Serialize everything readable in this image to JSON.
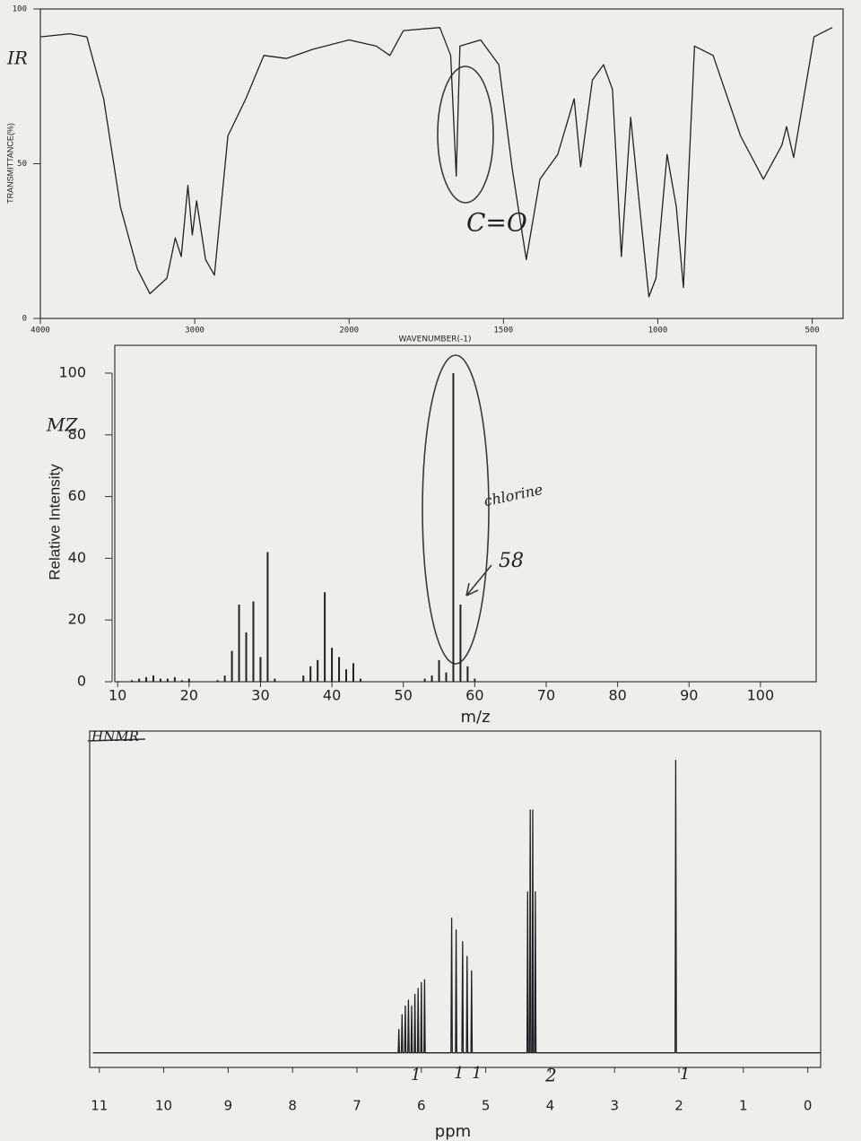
{
  "chart_data": [
    {
      "type": "line",
      "x_scale": "tick-spaced",
      "x_label": "WAVENUMBER(-1)",
      "y_label": "TRANSMITTANCE(%)",
      "annotations": [
        "IR",
        "C=O"
      ],
      "color": "#222222",
      "xlim": [
        4000,
        400
      ],
      "xticks": [
        4000,
        3000,
        2000,
        1500,
        1000,
        500
      ],
      "ylim": [
        0,
        100
      ],
      "yticks": [
        0,
        50,
        100
      ],
      "x": [
        4000,
        3809,
        3699,
        3590,
        3481,
        3372,
        3290,
        3180,
        3126,
        3087,
        3044,
        3016,
        2988,
        2930,
        2872,
        2785,
        2669,
        2552,
        2407,
        2233,
        2000,
        1912,
        1868,
        1824,
        1706,
        1671,
        1653,
        1641,
        1574,
        1515,
        1471,
        1426,
        1382,
        1324,
        1271,
        1250,
        1212,
        1176,
        1147,
        1118,
        1088,
        1059,
        1029,
        1006,
        970,
        940,
        917,
        881,
        821,
        732,
        658,
        598,
        583,
        560,
        494,
        435
      ],
      "values": [
        91,
        92,
        91,
        71,
        36,
        16,
        8,
        13,
        26,
        20,
        43,
        27,
        38,
        19,
        14,
        59,
        71,
        85,
        84,
        87,
        90,
        88,
        85,
        93,
        94,
        85,
        46,
        88,
        90,
        82,
        48,
        19,
        45,
        53,
        71,
        49,
        77,
        82,
        74,
        20,
        65,
        36,
        7,
        13,
        53,
        36,
        10,
        88,
        85,
        59,
        45,
        56,
        62,
        52,
        91,
        94
      ]
    },
    {
      "type": "bar",
      "x_label": "m/z",
      "y_label": "Relative Intensity",
      "annotations": [
        "MZ",
        "chlorine",
        "58"
      ],
      "color": "#222222",
      "xlim": [
        9.6,
        107.8
      ],
      "xticks": [
        10,
        20,
        30,
        40,
        50,
        60,
        70,
        80,
        90,
        100
      ],
      "ylim": [
        0,
        109
      ],
      "yticks": [
        0,
        20,
        40,
        60,
        80,
        100
      ],
      "x": [
        12,
        13,
        14,
        15,
        16,
        17,
        18,
        19,
        20,
        24,
        25,
        26,
        27,
        28,
        29,
        30,
        31,
        32,
        36,
        37,
        38,
        39,
        40,
        41,
        42,
        43,
        44,
        53,
        54,
        55,
        56,
        57,
        58,
        59,
        60
      ],
      "values": [
        0.5,
        1,
        1.5,
        2,
        1,
        1,
        1.5,
        0.5,
        1,
        0.5,
        2,
        10,
        25,
        16,
        26,
        8,
        42,
        1,
        2,
        5,
        7,
        29,
        11,
        8,
        4,
        6,
        1,
        1,
        2,
        7,
        3,
        100,
        25,
        5,
        1
      ]
    },
    {
      "type": "line",
      "x_label": "ppm",
      "annotations": [
        "HNMR",
        "1",
        "1",
        "1",
        "2",
        "1"
      ],
      "color": "#222222",
      "xlim": [
        11.15,
        -0.2
      ],
      "xticks": [
        11,
        10,
        9,
        8,
        7,
        6,
        5,
        4,
        3,
        2,
        1,
        0
      ],
      "ylim": [
        -0.05,
        1.1
      ],
      "x": [
        11.1,
        6.4,
        6.36,
        6.35,
        6.34,
        6.31,
        6.3,
        6.29,
        6.26,
        6.25,
        6.24,
        6.21,
        6.2,
        6.19,
        6.16,
        6.15,
        6.14,
        6.11,
        6.1,
        6.09,
        6.06,
        6.05,
        6.04,
        6.01,
        6.0,
        5.99,
        5.96,
        5.95,
        5.94,
        5.6,
        5.54,
        5.53,
        5.52,
        5.47,
        5.46,
        5.45,
        5.37,
        5.36,
        5.35,
        5.3,
        5.29,
        5.28,
        5.23,
        5.22,
        5.21,
        4.5,
        4.36,
        4.35,
        4.34,
        4.32,
        4.31,
        4.3,
        4.28,
        4.27,
        4.26,
        4.24,
        4.23,
        4.22,
        2.2,
        2.06,
        2.05,
        2.04,
        1.8,
        -0.2
      ],
      "values": [
        0,
        0,
        0,
        0.08,
        0,
        0,
        0.13,
        0,
        0,
        0.16,
        0,
        0,
        0.18,
        0,
        0,
        0.16,
        0,
        0,
        0.2,
        0,
        0,
        0.22,
        0,
        0,
        0.24,
        0,
        0,
        0.25,
        0,
        0,
        0,
        0.46,
        0,
        0,
        0.42,
        0,
        0,
        0.38,
        0,
        0,
        0.33,
        0,
        0,
        0.28,
        0,
        0,
        0,
        0.55,
        0,
        0,
        0.83,
        0,
        0,
        0.83,
        0,
        0,
        0.55,
        0,
        0,
        0,
        1.0,
        0,
        0,
        0
      ]
    }
  ]
}
